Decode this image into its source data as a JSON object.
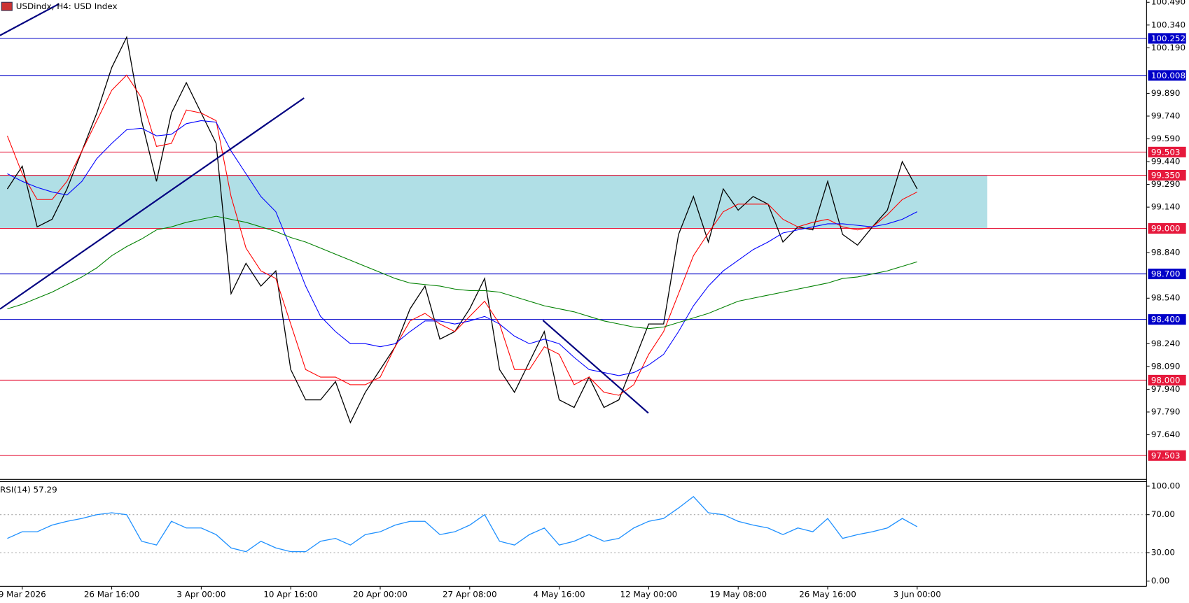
{
  "chart_data": [
    {
      "type": "line",
      "title": "USDindx, H4:  USD Index",
      "categories": [
        null,
        "9 Mar 2026",
        null,
        null,
        null,
        null,
        null,
        "26 Mar 16:00",
        null,
        null,
        null,
        null,
        null,
        "3 Apr 00:00",
        null,
        null,
        null,
        null,
        null,
        "10 Apr 16:00",
        null,
        null,
        null,
        null,
        null,
        "20 Apr 00:00",
        null,
        null,
        null,
        null,
        null,
        "27 Apr 08:00",
        null,
        null,
        null,
        null,
        null,
        "4 May 16:00",
        null,
        null,
        null,
        null,
        null,
        "12 May 00:00",
        null,
        null,
        null,
        null,
        null,
        "19 May 08:00",
        null,
        null,
        null,
        null,
        null,
        "26 May 16:00",
        null,
        null,
        null,
        null,
        null,
        "3 Jun 00:00"
      ],
      "series": [
        {
          "color": "#000000",
          "values": [
            99.26,
            99.41,
            99.01,
            99.06,
            99.26,
            99.51,
            99.76,
            100.06,
            100.26,
            99.71,
            99.31,
            99.76,
            99.96,
            99.76,
            99.56,
            98.57,
            98.77,
            98.62,
            98.72,
            98.07,
            97.87,
            97.87,
            97.99,
            97.72,
            97.92,
            98.07,
            98.22,
            98.47,
            98.62,
            98.27,
            98.32,
            98.47,
            98.67,
            98.07,
            97.92,
            98.12,
            98.32,
            97.87,
            97.82,
            98.02,
            97.82,
            97.87,
            98.12,
            98.37,
            98.37,
            98.96,
            99.21,
            98.91,
            99.26,
            99.12,
            99.21,
            99.16,
            98.91,
            99.01,
            98.99,
            99.31,
            98.96,
            98.89,
            99.01,
            99.12,
            99.44,
            99.26
          ]
        },
        {
          "color": "#ff0000",
          "values": [
            99.61,
            99.36,
            99.19,
            99.19,
            99.31,
            99.51,
            99.71,
            99.91,
            100.01,
            99.86,
            99.54,
            99.56,
            99.78,
            99.76,
            99.71,
            99.21,
            98.87,
            98.72,
            98.67,
            98.37,
            98.07,
            98.02,
            98.02,
            97.97,
            97.97,
            98.02,
            98.22,
            98.39,
            98.44,
            98.37,
            98.32,
            98.42,
            98.52,
            98.37,
            98.07,
            98.07,
            98.22,
            98.17,
            97.97,
            98.02,
            97.92,
            97.9,
            97.97,
            98.17,
            98.32,
            98.57,
            98.82,
            98.97,
            99.11,
            99.16,
            99.16,
            99.16,
            99.06,
            99.01,
            99.04,
            99.06,
            99.01,
            98.99,
            99.01,
            99.09,
            99.19,
            99.24
          ]
        },
        {
          "color": "#0000ff",
          "values": [
            99.36,
            99.31,
            99.27,
            99.24,
            99.22,
            99.31,
            99.46,
            99.56,
            99.65,
            99.66,
            99.61,
            99.62,
            99.69,
            99.71,
            99.7,
            99.51,
            99.36,
            99.21,
            99.11,
            98.87,
            98.62,
            98.42,
            98.32,
            98.24,
            98.24,
            98.22,
            98.24,
            98.32,
            98.39,
            98.39,
            98.37,
            98.39,
            98.42,
            98.37,
            98.29,
            98.24,
            98.27,
            98.24,
            98.15,
            98.07,
            98.05,
            98.03,
            98.05,
            98.1,
            98.17,
            98.32,
            98.49,
            98.62,
            98.72,
            98.79,
            98.86,
            98.91,
            98.97,
            98.99,
            99.01,
            99.03,
            99.03,
            99.02,
            99.01,
            99.03,
            99.06,
            99.11
          ]
        },
        {
          "color": "#008000",
          "values": [
            98.47,
            98.5,
            98.54,
            98.58,
            98.63,
            98.68,
            98.74,
            98.82,
            98.88,
            98.93,
            98.99,
            99.01,
            99.04,
            99.06,
            99.08,
            99.06,
            99.04,
            99.01,
            98.98,
            98.94,
            98.91,
            98.87,
            98.83,
            98.79,
            98.75,
            98.71,
            98.67,
            98.64,
            98.63,
            98.62,
            98.6,
            98.59,
            98.59,
            98.58,
            98.55,
            98.52,
            98.49,
            98.47,
            98.45,
            98.42,
            98.39,
            98.37,
            98.35,
            98.34,
            98.35,
            98.38,
            98.41,
            98.44,
            98.48,
            98.52,
            98.54,
            98.56,
            98.58,
            98.6,
            98.62,
            98.64,
            98.67,
            98.68,
            98.7,
            98.72,
            98.75,
            98.78
          ]
        }
      ],
      "ylim": [
        97.346,
        100.505
      ],
      "yticks": [
        {
          "value": 100.49,
          "label": "100.490"
        },
        {
          "value": 100.34,
          "label": "100.340"
        },
        {
          "value": 100.19,
          "label": "100.190"
        },
        {
          "value": 99.89,
          "label": "99.890"
        },
        {
          "value": 99.74,
          "label": "99.740"
        },
        {
          "value": 99.59,
          "label": "99.590"
        },
        {
          "value": 99.44,
          "label": "99.440"
        },
        {
          "value": 99.29,
          "label": "99.290"
        },
        {
          "value": 99.14,
          "label": "99.140"
        },
        {
          "value": 98.84,
          "label": "98.840"
        },
        {
          "value": 98.54,
          "label": "98.540"
        },
        {
          "value": 98.24,
          "label": "98.240"
        },
        {
          "value": 98.09,
          "label": "98.090"
        },
        {
          "value": 97.94,
          "label": "97.940"
        },
        {
          "value": 97.79,
          "label": "97.790"
        },
        {
          "value": 97.64,
          "label": "97.640"
        }
      ],
      "levels": [
        {
          "value": 100.252,
          "color": "#0000c8"
        },
        {
          "value": 100.008,
          "color": "#0000c8"
        },
        {
          "value": 99.503,
          "color": "#e6193c"
        },
        {
          "value": 99.35,
          "label": "99.350",
          "color": "#e6193c"
        },
        {
          "value": 99,
          "label": "99.000",
          "color": "#e6193c"
        },
        {
          "value": 98.7,
          "label": "98.700",
          "color": "#0000c8"
        },
        {
          "value": 98.4,
          "label": "98.400",
          "color": "#0000c8"
        },
        {
          "value": 98,
          "label": "98.000",
          "color": "#e6193c"
        },
        {
          "value": 97.503,
          "color": "#e6193c"
        }
      ],
      "zone": {
        "from": 99,
        "to": 99.35,
        "color": "#b0dfe6"
      }
    },
    {
      "type": "line",
      "title": "RSI(14) 57.29",
      "series": [
        {
          "color": "#1e90ff",
          "values": [
            45,
            52,
            52,
            59,
            63,
            66,
            70,
            72,
            70,
            42,
            38,
            63,
            56,
            56,
            49,
            35,
            31,
            42,
            35,
            31,
            31,
            42,
            45,
            38,
            49,
            52,
            59,
            63,
            63,
            49,
            52,
            59,
            70,
            42,
            38,
            49,
            56,
            38,
            42,
            49,
            42,
            45,
            56,
            63,
            66,
            77,
            89,
            72,
            70,
            63,
            59,
            56,
            49,
            56,
            52,
            66,
            45,
            49,
            52,
            56,
            66,
            57.29
          ]
        }
      ],
      "ylim": [
        0,
        100
      ],
      "yticks": [
        {
          "value": 100,
          "label": "100.00"
        },
        {
          "value": 70,
          "label": "70.00"
        },
        {
          "value": 30,
          "label": "30.00"
        },
        {
          "value": 0,
          "label": "0.00"
        }
      ]
    }
  ]
}
